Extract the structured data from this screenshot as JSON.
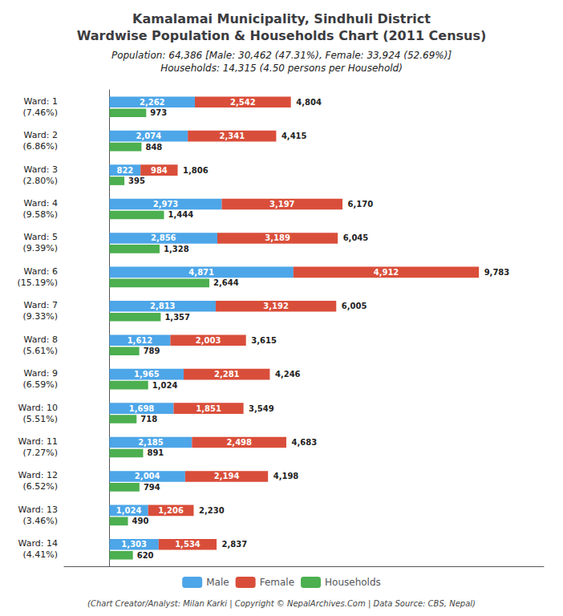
{
  "chart_data": {
    "type": "bar",
    "orientation": "horizontal",
    "title": "Kamalamai Municipality, Sindhuli District\nWardwise Population & Households Chart (2011 Census)",
    "subtitle": "Population: 64,386 [Male: 30,462 (47.31%), Female: 33,924 (52.69%)]\nHouseholds: 14,315 (4.50 persons per Household)",
    "annotations": [
      "(Chart Creator/Analyst: Milan Karki | Copyright © NepalArchives.Com | Data Source: CBS, Nepal)"
    ],
    "categories": [
      "Ward: 1\n(7.46%)",
      "Ward: 2\n(6.86%)",
      "Ward: 3\n(2.80%)",
      "Ward: 4\n(9.58%)",
      "Ward: 5\n(9.39%)",
      "Ward: 6\n(15.19%)",
      "Ward: 7\n(9.33%)",
      "Ward: 8\n(5.61%)",
      "Ward: 9\n(6.59%)",
      "Ward: 10\n(5.51%)",
      "Ward: 11\n(7.27%)",
      "Ward: 12\n(6.52%)",
      "Ward: 13\n(3.46%)",
      "Ward: 14\n(4.41%)"
    ],
    "series": [
      {
        "name": "Male",
        "color": "#4da6e8",
        "values": [
          2262,
          2074,
          822,
          2973,
          2856,
          4871,
          2813,
          1612,
          1965,
          1698,
          2185,
          2004,
          1024,
          1303
        ],
        "value_labels": [
          "2,262",
          "2,074",
          "822",
          "2,973",
          "2,856",
          "4,871",
          "2,813",
          "1,612",
          "1,965",
          "1,698",
          "2,185",
          "2,004",
          "1,024",
          "1,303"
        ]
      },
      {
        "name": "Female",
        "color": "#d94e3a",
        "values": [
          2542,
          2341,
          984,
          3197,
          3189,
          4912,
          3192,
          2003,
          2281,
          1851,
          2498,
          2194,
          1206,
          1534
        ],
        "value_labels": [
          "2,542",
          "2,341",
          "984",
          "3,197",
          "3,189",
          "4,912",
          "3,192",
          "2,003",
          "2,281",
          "1,851",
          "2,498",
          "2,194",
          "1,206",
          "1,534"
        ]
      },
      {
        "name": "Households",
        "color": "#4caf50",
        "values": [
          973,
          848,
          395,
          1444,
          1328,
          2644,
          1357,
          789,
          1024,
          718,
          891,
          794,
          490,
          620
        ],
        "value_labels": [
          "973",
          "848",
          "395",
          "1,444",
          "1,328",
          "2,644",
          "1,357",
          "789",
          "1,024",
          "718",
          "891",
          "794",
          "490",
          "620"
        ]
      }
    ],
    "totals": [
      4804,
      4415,
      1806,
      6170,
      6045,
      9783,
      6005,
      3615,
      4246,
      3549,
      4683,
      4198,
      2230,
      2837
    ],
    "total_labels": [
      "4,804",
      "4,415",
      "1,806",
      "6,170",
      "6,045",
      "9,783",
      "6,005",
      "3,615",
      "4,246",
      "3,549",
      "4,683",
      "4,198",
      "2,230",
      "2,837"
    ],
    "stacked": [
      "Male",
      "Female"
    ],
    "xlim": [
      -1200,
      11500
    ],
    "tick_labels": "y",
    "grid": false,
    "legend": "bottom",
    "data_labels": true
  }
}
